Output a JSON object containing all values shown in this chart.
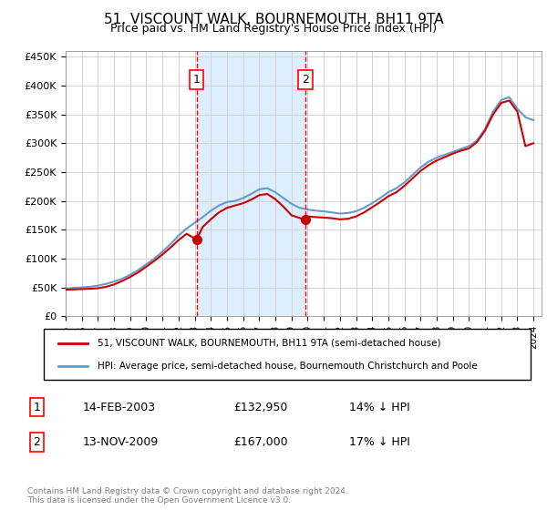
{
  "title": "51, VISCOUNT WALK, BOURNEMOUTH, BH11 9TA",
  "subtitle": "Price paid vs. HM Land Registry's House Price Index (HPI)",
  "legend_label_red": "51, VISCOUNT WALK, BOURNEMOUTH, BH11 9TA (semi-detached house)",
  "legend_label_blue": "HPI: Average price, semi-detached house, Bournemouth Christchurch and Poole",
  "footer": "Contains HM Land Registry data © Crown copyright and database right 2024.\nThis data is licensed under the Open Government Licence v3.0.",
  "sale1_date": "14-FEB-2003",
  "sale1_price": "£132,950",
  "sale1_hpi": "14% ↓ HPI",
  "sale2_date": "13-NOV-2009",
  "sale2_price": "£167,000",
  "sale2_hpi": "17% ↓ HPI",
  "red_color": "#cc0000",
  "blue_color": "#6699cc",
  "shading_color": "#ddeeff",
  "marker1_x_year": 2003.12,
  "marker2_x_year": 2009.87,
  "ylim": [
    0,
    460000
  ],
  "xlim_start": 1995.0,
  "xlim_end": 2024.5,
  "yticks": [
    0,
    50000,
    100000,
    150000,
    200000,
    250000,
    300000,
    350000,
    400000,
    450000
  ],
  "ytick_labels": [
    "£0",
    "£50K",
    "£100K",
    "£150K",
    "£200K",
    "£250K",
    "£300K",
    "£350K",
    "£400K",
    "£450K"
  ],
  "xtick_years": [
    1995,
    1996,
    1997,
    1998,
    1999,
    2000,
    2001,
    2002,
    2003,
    2004,
    2005,
    2006,
    2007,
    2008,
    2009,
    2010,
    2011,
    2012,
    2013,
    2014,
    2015,
    2016,
    2017,
    2018,
    2019,
    2020,
    2021,
    2022,
    2023,
    2024
  ],
  "hpi_x": [
    1995,
    1995.5,
    1996,
    1996.5,
    1997,
    1997.5,
    1998,
    1998.5,
    1999,
    1999.5,
    2000,
    2000.5,
    2001,
    2001.5,
    2002,
    2002.5,
    2003,
    2003.5,
    2004,
    2004.5,
    2005,
    2005.5,
    2006,
    2006.5,
    2007,
    2007.5,
    2008,
    2008.5,
    2009,
    2009.5,
    2010,
    2010.5,
    2011,
    2011.5,
    2012,
    2012.5,
    2013,
    2013.5,
    2014,
    2014.5,
    2015,
    2015.5,
    2016,
    2016.5,
    2017,
    2017.5,
    2018,
    2018.5,
    2019,
    2019.5,
    2020,
    2020.5,
    2021,
    2021.5,
    2022,
    2022.5,
    2023,
    2023.5,
    2024
  ],
  "hpi_y": [
    48000,
    49000,
    50000,
    51000,
    53000,
    56000,
    60000,
    65000,
    72000,
    80000,
    90000,
    100000,
    112000,
    125000,
    140000,
    152000,
    162000,
    172000,
    183000,
    192000,
    198000,
    200000,
    205000,
    212000,
    220000,
    222000,
    215000,
    205000,
    195000,
    188000,
    185000,
    183000,
    182000,
    180000,
    178000,
    179000,
    182000,
    188000,
    196000,
    205000,
    215000,
    222000,
    232000,
    245000,
    258000,
    268000,
    275000,
    280000,
    285000,
    290000,
    295000,
    305000,
    325000,
    355000,
    375000,
    380000,
    360000,
    345000,
    340000
  ],
  "red_x": [
    1995,
    1995.5,
    1996,
    1996.5,
    1997,
    1997.5,
    1998,
    1998.5,
    1999,
    1999.5,
    2000,
    2000.5,
    2001,
    2001.5,
    2002,
    2002.5,
    2003.12,
    2003.5,
    2004,
    2004.5,
    2005,
    2005.5,
    2006,
    2006.5,
    2007,
    2007.5,
    2008,
    2008.5,
    2009,
    2009.87,
    2010,
    2010.5,
    2011,
    2011.5,
    2012,
    2012.5,
    2013,
    2013.5,
    2014,
    2014.5,
    2015,
    2015.5,
    2016,
    2016.5,
    2017,
    2017.5,
    2018,
    2018.5,
    2019,
    2019.5,
    2020,
    2020.5,
    2021,
    2021.5,
    2022,
    2022.5,
    2023,
    2023.5,
    2024
  ],
  "red_y": [
    46000,
    46500,
    47000,
    47500,
    48500,
    51000,
    55000,
    61000,
    68000,
    76000,
    86000,
    96000,
    107000,
    119000,
    132000,
    143000,
    132950,
    155000,
    168000,
    180000,
    188000,
    192000,
    196000,
    202000,
    210000,
    212000,
    203000,
    190000,
    175000,
    167000,
    173000,
    172000,
    171000,
    170000,
    168000,
    169000,
    173000,
    180000,
    189000,
    198000,
    208000,
    215000,
    226000,
    239000,
    252000,
    262000,
    270000,
    276000,
    282000,
    287000,
    291000,
    302000,
    322000,
    350000,
    370000,
    374000,
    355000,
    295000,
    300000
  ]
}
